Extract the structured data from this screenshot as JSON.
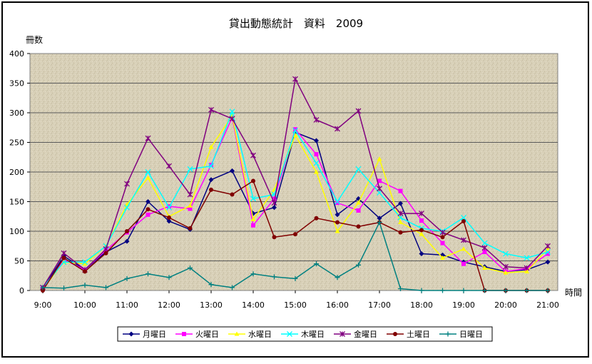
{
  "chart_data": {
    "type": "line",
    "title": "貸出動態統計　資料　2009",
    "ylabel": "冊数",
    "xlabel": "時間",
    "ylim": [
      0,
      400
    ],
    "yticks": [
      0,
      50,
      100,
      150,
      200,
      250,
      300,
      350,
      400
    ],
    "x": [
      "9:00",
      "9:30",
      "10:00",
      "10:30",
      "11:00",
      "11:30",
      "12:00",
      "12:30",
      "13:00",
      "13:30",
      "14:00",
      "14:30",
      "15:00",
      "15:30",
      "16:00",
      "16:30",
      "17:00",
      "17:30",
      "18:00",
      "18:30",
      "19:00",
      "19:30",
      "20:00",
      "20:30",
      "21:00"
    ],
    "xtick_labels": [
      "9:00",
      "10:00",
      "11:00",
      "12:00",
      "13:00",
      "14:00",
      "15:00",
      "16:00",
      "17:00",
      "18:00",
      "19:00",
      "20:00",
      "21:00"
    ],
    "grid": "horizontal",
    "plot_background": "textured-beige",
    "legend_position": "bottom",
    "series": [
      {
        "name": "月曜日",
        "color": "#000080",
        "marker": "diamond",
        "values": [
          3,
          58,
          35,
          65,
          83,
          150,
          117,
          103,
          187,
          202,
          130,
          140,
          267,
          253,
          128,
          155,
          122,
          147,
          62,
          60,
          48,
          40,
          32,
          35,
          48
        ]
      },
      {
        "name": "火曜日",
        "color": "#ff00ff",
        "marker": "square",
        "values": [
          3,
          52,
          35,
          68,
          98,
          128,
          142,
          138,
          212,
          292,
          110,
          155,
          272,
          230,
          148,
          135,
          185,
          168,
          118,
          80,
          45,
          65,
          32,
          37,
          62
        ]
      },
      {
        "name": "水曜日",
        "color": "#ffff00",
        "marker": "triangle",
        "values": [
          3,
          48,
          45,
          75,
          145,
          190,
          125,
          143,
          242,
          295,
          120,
          170,
          262,
          200,
          100,
          148,
          222,
          115,
          95,
          55,
          70,
          38,
          30,
          32,
          70
        ]
      },
      {
        "name": "木曜日",
        "color": "#00ffff",
        "marker": "x",
        "values": [
          5,
          48,
          48,
          75,
          140,
          200,
          140,
          205,
          210,
          302,
          155,
          162,
          270,
          215,
          150,
          205,
          165,
          123,
          105,
          100,
          123,
          80,
          62,
          55,
          65
        ]
      },
      {
        "name": "金曜日",
        "color": "#800080",
        "marker": "star",
        "values": [
          5,
          63,
          35,
          70,
          180,
          257,
          210,
          162,
          305,
          290,
          228,
          148,
          357,
          288,
          273,
          303,
          172,
          130,
          130,
          98,
          85,
          72,
          40,
          38,
          75
        ]
      },
      {
        "name": "土曜日",
        "color": "#800000",
        "marker": "circle",
        "values": [
          0,
          55,
          32,
          63,
          100,
          137,
          123,
          105,
          170,
          162,
          185,
          90,
          95,
          122,
          115,
          108,
          115,
          98,
          102,
          90,
          117,
          0,
          0,
          0,
          0
        ]
      },
      {
        "name": "日曜日",
        "color": "#008080",
        "marker": "plus",
        "values": [
          5,
          4,
          9,
          5,
          20,
          28,
          22,
          38,
          10,
          5,
          28,
          23,
          20,
          45,
          22,
          43,
          115,
          3,
          0,
          0,
          0,
          0,
          0,
          0,
          0
        ]
      }
    ]
  }
}
